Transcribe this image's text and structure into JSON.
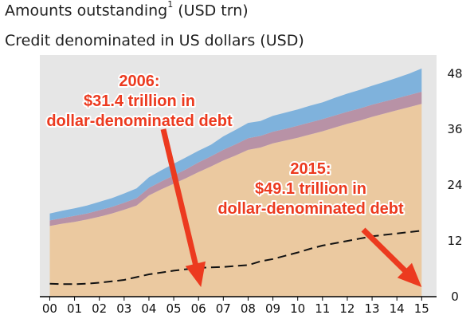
{
  "chart_data": {
    "type": "area",
    "title": "Amounts outstanding",
    "title_footnote": "1",
    "title_unit": "(USD trn)",
    "subtitle": "Credit denominated in US dollars (USD)",
    "x_ticks": [
      "00",
      "01",
      "02",
      "03",
      "04",
      "05",
      "06",
      "07",
      "08",
      "09",
      "10",
      "11",
      "12",
      "13",
      "14",
      "15"
    ],
    "y_ticks": [
      0,
      12,
      24,
      36,
      48
    ],
    "ylim": [
      0,
      52
    ],
    "y_axis_side": "right",
    "grid": false,
    "x": [
      2000.0,
      2000.5,
      2001.0,
      2001.5,
      2002.0,
      2002.5,
      2003.0,
      2003.5,
      2004.0,
      2004.5,
      2005.0,
      2005.5,
      2006.0,
      2006.5,
      2007.0,
      2007.5,
      2008.0,
      2008.5,
      2009.0,
      2009.5,
      2010.0,
      2010.5,
      2011.0,
      2011.5,
      2012.0,
      2012.5,
      2013.0,
      2013.5,
      2014.0,
      2014.5,
      2015.0
    ],
    "series": [
      {
        "color": "#ebc9a0",
        "values": [
          15.2,
          15.7,
          16.1,
          16.6,
          17.2,
          17.9,
          18.7,
          19.6,
          21.8,
          23.1,
          24.3,
          25.5,
          26.8,
          28.0,
          29.3,
          30.4,
          31.6,
          32.1,
          33.0,
          33.6,
          34.2,
          34.9,
          35.6,
          36.4,
          37.2,
          37.9,
          38.7,
          39.4,
          40.1,
          40.8,
          41.5
        ]
      },
      {
        "color": "#b892a6",
        "values": [
          1.2,
          1.2,
          1.3,
          1.3,
          1.4,
          1.4,
          1.5,
          1.6,
          1.6,
          1.7,
          1.8,
          1.9,
          2.1,
          2.2,
          2.3,
          2.4,
          2.5,
          2.5,
          2.5,
          2.5,
          2.6,
          2.6,
          2.6,
          2.6,
          2.6,
          2.6,
          2.6,
          2.6,
          2.6,
          2.6,
          2.6
        ]
      },
      {
        "color": "#7fb2dc",
        "values": [
          1.5,
          1.6,
          1.6,
          1.7,
          1.8,
          1.9,
          2.0,
          2.1,
          2.3,
          2.4,
          2.5,
          2.6,
          2.5,
          2.5,
          2.9,
          3.1,
          3.3,
          3.2,
          3.4,
          3.5,
          3.5,
          3.6,
          3.6,
          3.8,
          3.9,
          4.0,
          4.1,
          4.2,
          4.4,
          4.6,
          5.0
        ]
      }
    ],
    "dashed_line": {
      "color": "#111111",
      "values": [
        2.8,
        2.7,
        2.7,
        2.8,
        3.0,
        3.3,
        3.6,
        4.2,
        4.8,
        5.2,
        5.6,
        5.9,
        6.2,
        6.3,
        6.4,
        6.6,
        6.8,
        7.6,
        8.1,
        8.8,
        9.5,
        10.3,
        11.0,
        11.5,
        12.0,
        12.5,
        13.0,
        13.3,
        13.6,
        13.9,
        14.2
      ]
    },
    "annotations": [
      {
        "lines": [
          "2006:",
          "$31.4 trillion in",
          "dollar-denominated debt"
        ],
        "color": "#ec3a1f",
        "arrow_to": [
          2006.1,
          0
        ]
      },
      {
        "lines": [
          "2015:",
          "$49.1 trillion in",
          "dollar-denominated debt"
        ],
        "color": "#ec3a1f",
        "arrow_to": [
          2015.0,
          0
        ]
      }
    ]
  }
}
